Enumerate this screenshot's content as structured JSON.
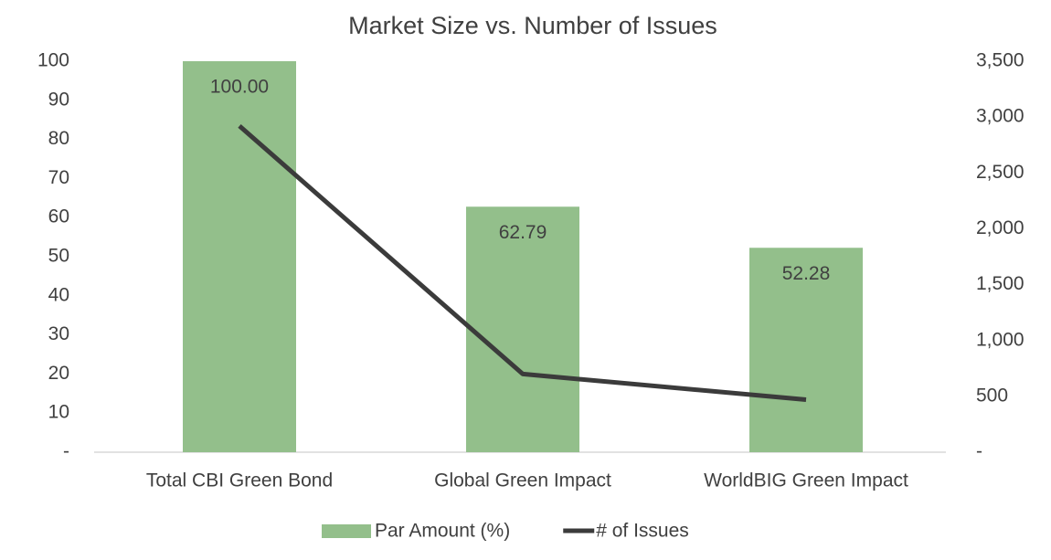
{
  "chart_data": {
    "type": "bar",
    "title": "Market Size vs. Number of Issues",
    "categories": [
      "Total CBI Green Bond",
      "Global Green Impact",
      "WorldBIG Green Impact"
    ],
    "series": [
      {
        "name": "Par Amount (%)",
        "type": "bar",
        "color": "#93bf8b",
        "values": [
          100,
          62.79,
          52.28
        ],
        "value_labels": [
          "100.00",
          "62.79",
          "52.28"
        ]
      },
      {
        "name": "# of Issues",
        "type": "line",
        "axis": "y2",
        "color": "#3b3b3b",
        "values": [
          2920,
          700,
          470
        ]
      }
    ],
    "ylim": [
      0,
      100
    ],
    "yticks": [
      {
        "value": 0,
        "label": "-"
      },
      10,
      20,
      30,
      40,
      50,
      60,
      70,
      80,
      90,
      100
    ],
    "y2lim": [
      0,
      3500
    ],
    "y2ticks": [
      {
        "value": 0,
        "label": "-"
      },
      500,
      {
        "value": 1000,
        "label": "1,000"
      },
      {
        "value": 1500,
        "label": "1,500"
      },
      {
        "value": 2000,
        "label": "2,000"
      },
      {
        "value": 2500,
        "label": "2,500"
      },
      {
        "value": 3000,
        "label": "3,000"
      },
      {
        "value": 3500,
        "label": "3,500"
      }
    ],
    "grid": false,
    "legend": "bottom"
  }
}
